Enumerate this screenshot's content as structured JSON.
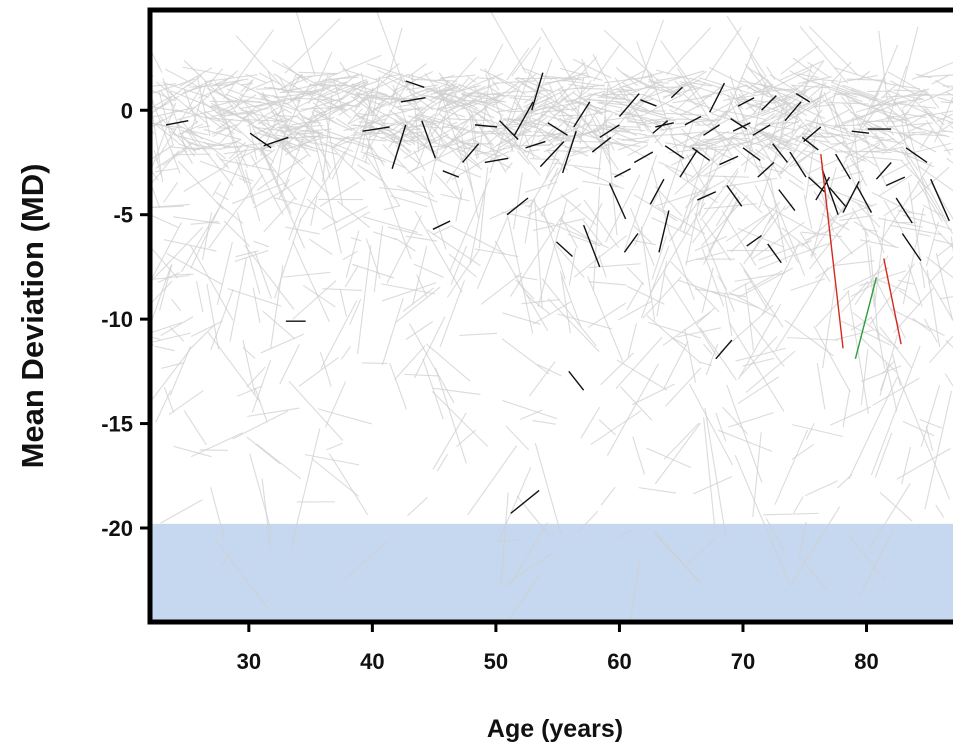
{
  "chart_data": {
    "type": "line",
    "title": "",
    "xlabel": "Age (years)",
    "ylabel": "Mean Deviation (MD)",
    "xlim": [
      22,
      87
    ],
    "ylim": [
      -24.5,
      4.8
    ],
    "xticks": [
      30,
      40,
      50,
      60,
      70,
      80
    ],
    "yticks": [
      0,
      -5,
      -10,
      -15,
      -20
    ],
    "xtick_labels": [
      "30",
      "40",
      "50",
      "60",
      "70",
      "80"
    ],
    "ytick_labels": [
      "0",
      "-5",
      "-10",
      "-15",
      "-20"
    ],
    "grid": false,
    "legend": "none",
    "shaded_region": {
      "y_from": -19.8,
      "y_to": -24.5,
      "color": "#c6d8f0"
    },
    "colors": {
      "background": "#cfcfcf",
      "highlight": "#111111",
      "red": "#d42a1e",
      "green": "#2e9e3a",
      "axis": "#000000"
    },
    "background_lines_description_count": 900,
    "series": [
      {
        "color": "black",
        "segments": [
          [
            [
              23.3,
              -0.7
            ],
            [
              25.1,
              -0.5
            ]
          ],
          [
            [
              30.1,
              -1.1
            ],
            [
              31.8,
              -1.8
            ]
          ],
          [
            [
              31.2,
              -1.7
            ],
            [
              33.2,
              -1.3
            ]
          ],
          [
            [
              39.2,
              -1.0
            ],
            [
              41.4,
              -0.8
            ]
          ],
          [
            [
              41.6,
              -2.8
            ],
            [
              42.7,
              -0.7
            ]
          ],
          [
            [
              42.3,
              0.4
            ],
            [
              44.3,
              0.6
            ]
          ],
          [
            [
              42.7,
              1.4
            ],
            [
              44.2,
              1.1
            ]
          ],
          [
            [
              44.0,
              -0.5
            ],
            [
              45.1,
              -2.3
            ]
          ],
          [
            [
              44.9,
              -5.7
            ],
            [
              46.3,
              -5.3
            ]
          ],
          [
            [
              45.7,
              -2.9
            ],
            [
              47.0,
              -3.2
            ]
          ],
          [
            [
              47.3,
              -2.5
            ],
            [
              48.6,
              -1.6
            ]
          ],
          [
            [
              48.3,
              -0.7
            ],
            [
              50.1,
              -0.8
            ]
          ],
          [
            [
              49.1,
              -2.5
            ],
            [
              51.0,
              -2.3
            ]
          ],
          [
            [
              50.3,
              -0.5
            ],
            [
              51.8,
              -1.4
            ]
          ],
          [
            [
              50.9,
              -5.0
            ],
            [
              52.6,
              -4.2
            ]
          ],
          [
            [
              51.5,
              -1.2
            ],
            [
              53.0,
              0.4
            ]
          ],
          [
            [
              52.4,
              -1.8
            ],
            [
              54.0,
              -1.5
            ]
          ],
          [
            [
              52.9,
              0.0
            ],
            [
              53.8,
              1.8
            ]
          ],
          [
            [
              53.6,
              -2.7
            ],
            [
              55.5,
              -1.5
            ]
          ],
          [
            [
              54.2,
              -0.6
            ],
            [
              55.8,
              -1.2
            ]
          ],
          [
            [
              54.9,
              -6.3
            ],
            [
              56.2,
              -7.0
            ]
          ],
          [
            [
              55.4,
              -3.0
            ],
            [
              56.5,
              -1.0
            ]
          ],
          [
            [
              55.9,
              -12.5
            ],
            [
              57.1,
              -13.4
            ]
          ],
          [
            [
              56.3,
              -0.8
            ],
            [
              57.6,
              0.4
            ]
          ],
          [
            [
              57.1,
              -5.5
            ],
            [
              58.4,
              -7.5
            ]
          ],
          [
            [
              57.8,
              -2.0
            ],
            [
              59.3,
              -1.3
            ]
          ],
          [
            [
              58.4,
              -1.3
            ],
            [
              60.0,
              -0.7
            ]
          ],
          [
            [
              59.2,
              -3.5
            ],
            [
              60.5,
              -5.2
            ]
          ],
          [
            [
              60.0,
              -0.3
            ],
            [
              61.6,
              0.8
            ]
          ],
          [
            [
              60.4,
              -6.8
            ],
            [
              61.5,
              -5.9
            ]
          ],
          [
            [
              61.2,
              -2.5
            ],
            [
              62.7,
              -2.0
            ]
          ],
          [
            [
              61.7,
              0.5
            ],
            [
              63.0,
              0.2
            ]
          ],
          [
            [
              62.5,
              -4.5
            ],
            [
              63.6,
              -3.3
            ]
          ],
          [
            [
              62.9,
              -0.8
            ],
            [
              64.4,
              -0.6
            ]
          ],
          [
            [
              63.2,
              -6.8
            ],
            [
              64.0,
              -4.8
            ]
          ],
          [
            [
              63.7,
              -1.7
            ],
            [
              65.2,
              -2.3
            ]
          ],
          [
            [
              64.2,
              0.6
            ],
            [
              65.1,
              1.1
            ]
          ],
          [
            [
              64.9,
              -3.2
            ],
            [
              66.3,
              -1.9
            ]
          ],
          [
            [
              65.3,
              -0.7
            ],
            [
              66.6,
              -0.3
            ]
          ],
          [
            [
              65.9,
              -1.8
            ],
            [
              67.3,
              -2.4
            ]
          ],
          [
            [
              66.3,
              -4.3
            ],
            [
              67.8,
              -3.9
            ]
          ],
          [
            [
              66.8,
              -1.2
            ],
            [
              68.1,
              -0.7
            ]
          ],
          [
            [
              67.3,
              -0.1
            ],
            [
              68.5,
              1.3
            ]
          ],
          [
            [
              67.8,
              -11.9
            ],
            [
              69.1,
              -11.0
            ]
          ],
          [
            [
              68.1,
              -2.6
            ],
            [
              69.6,
              -2.2
            ]
          ],
          [
            [
              68.7,
              -3.6
            ],
            [
              69.9,
              -4.6
            ]
          ],
          [
            [
              69.2,
              -1.0
            ],
            [
              70.6,
              -0.6
            ]
          ],
          [
            [
              69.6,
              0.2
            ],
            [
              70.9,
              0.6
            ]
          ],
          [
            [
              70.0,
              -1.8
            ],
            [
              71.4,
              -2.4
            ]
          ],
          [
            [
              70.3,
              -6.5
            ],
            [
              71.5,
              -6.0
            ]
          ],
          [
            [
              70.8,
              -1.2
            ],
            [
              72.2,
              -0.7
            ]
          ],
          [
            [
              71.2,
              -3.2
            ],
            [
              72.5,
              -2.5
            ]
          ],
          [
            [
              71.5,
              0.0
            ],
            [
              72.7,
              0.7
            ]
          ],
          [
            [
              72.0,
              -6.4
            ],
            [
              73.1,
              -7.3
            ]
          ],
          [
            [
              72.4,
              -1.6
            ],
            [
              73.6,
              -2.5
            ]
          ],
          [
            [
              72.9,
              -3.8
            ],
            [
              74.2,
              -4.8
            ]
          ],
          [
            [
              73.4,
              -0.5
            ],
            [
              74.7,
              0.4
            ]
          ],
          [
            [
              73.8,
              -2.0
            ],
            [
              75.1,
              -3.2
            ]
          ],
          [
            [
              74.3,
              0.8
            ],
            [
              75.4,
              0.4
            ]
          ],
          [
            [
              74.8,
              -1.3
            ],
            [
              76.1,
              -1.9
            ]
          ],
          [
            [
              75.3,
              -3.2
            ],
            [
              76.6,
              -3.9
            ]
          ],
          [
            [
              75.9,
              -4.3
            ],
            [
              77.0,
              -3.2
            ]
          ],
          [
            [
              76.4,
              -2.8
            ],
            [
              77.7,
              -5.0
            ]
          ],
          [
            [
              77.0,
              -3.7
            ],
            [
              78.3,
              -4.6
            ]
          ],
          [
            [
              77.5,
              -2.1
            ],
            [
              78.7,
              -3.3
            ]
          ],
          [
            [
              78.1,
              -4.9
            ],
            [
              79.4,
              -3.4
            ]
          ],
          [
            [
              78.8,
              -1.0
            ],
            [
              80.2,
              -1.1
            ]
          ],
          [
            [
              79.2,
              -3.6
            ],
            [
              80.4,
              -4.9
            ]
          ],
          [
            [
              80.1,
              -0.9
            ],
            [
              82.0,
              -0.9
            ]
          ],
          [
            [
              80.8,
              -3.3
            ],
            [
              82.0,
              -2.5
            ]
          ],
          [
            [
              81.6,
              -3.6
            ],
            [
              83.1,
              -3.2
            ]
          ],
          [
            [
              82.4,
              -4.2
            ],
            [
              83.7,
              -5.4
            ]
          ],
          [
            [
              82.9,
              -5.9
            ],
            [
              84.4,
              -7.2
            ]
          ],
          [
            [
              83.2,
              -1.8
            ],
            [
              84.9,
              -2.5
            ]
          ],
          [
            [
              85.2,
              -3.3
            ],
            [
              86.7,
              -5.3
            ]
          ],
          [
            [
              33.0,
              -10.1
            ],
            [
              34.6,
              -10.1
            ]
          ],
          [
            [
              51.2,
              -19.3
            ],
            [
              53.5,
              -18.2
            ]
          ],
          [
            [
              74.9,
              -1.5
            ],
            [
              76.3,
              -0.8
            ]
          ],
          [
            [
              69.0,
              -0.4
            ],
            [
              70.3,
              -0.9
            ]
          ],
          [
            [
              62.7,
              -1.1
            ],
            [
              63.9,
              -0.5
            ]
          ],
          [
            [
              59.6,
              -3.2
            ],
            [
              60.9,
              -2.8
            ]
          ]
        ]
      },
      {
        "color": "red",
        "segments": [
          [
            [
              76.3,
              -2.1
            ],
            [
              78.1,
              -11.4
            ]
          ],
          [
            [
              81.4,
              -7.1
            ],
            [
              82.8,
              -11.2
            ]
          ]
        ]
      },
      {
        "color": "green",
        "segments": [
          [
            [
              79.1,
              -11.9
            ],
            [
              80.8,
              -8.0
            ]
          ]
        ]
      }
    ]
  }
}
